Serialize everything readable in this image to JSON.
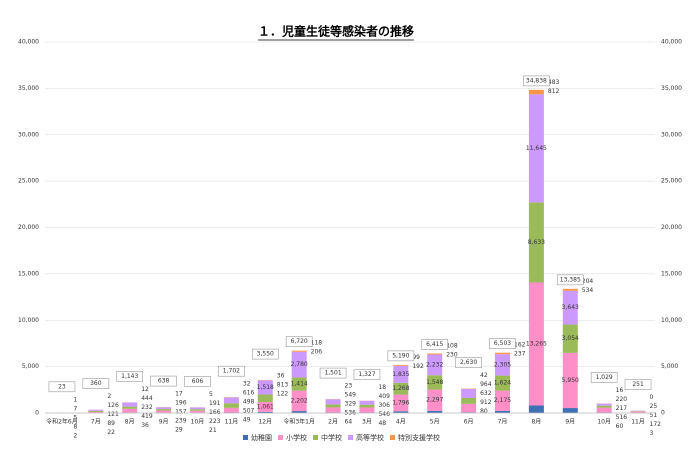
{
  "chart_data": {
    "type": "stacked-bar",
    "title": "１．児童生徒等感染者の推移",
    "categories": [
      "令和2年6月",
      "7月",
      "8月",
      "9月",
      "10月",
      "11月",
      "12月",
      "令和3年1月",
      "2月",
      "3月",
      "4月",
      "5月",
      "6月",
      "7月",
      "8月",
      "9月",
      "10月",
      "11月"
    ],
    "series": [
      {
        "name": "幼稚園",
        "color": "#3f6fb5",
        "values": [
          2,
          22,
          36,
          29,
          21,
          49,
          122,
          206,
          64,
          48,
          192,
          230,
          80,
          237,
          812,
          534,
          60,
          3
        ],
        "value_labels": [
          "2",
          "22",
          "36",
          "29",
          "21",
          "49",
          "122",
          "206",
          "64",
          "48",
          "192",
          "230",
          "80",
          "237",
          "812",
          "534",
          "60",
          "3"
        ]
      },
      {
        "name": "小学校",
        "color": "#ff8fc8",
        "values": [
          8,
          89,
          419,
          239,
          223,
          507,
          1061,
          2202,
          536,
          546,
          1796,
          2297,
          912,
          2175,
          13265,
          5950,
          516,
          172
        ],
        "value_labels": [
          "8",
          "89",
          "419",
          "239",
          "223",
          "507",
          "1,061",
          "2,202",
          "536",
          "546",
          "1,796",
          "2,297",
          "912",
          "2,175",
          "13,265",
          "5,950",
          "516",
          "172"
        ]
      },
      {
        "name": "中学校",
        "color": "#9bbb59",
        "values": [
          5,
          121,
          232,
          157,
          166,
          498,
          813,
          1414,
          329,
          306,
          1268,
          1548,
          632,
          1624,
          8633,
          3054,
          217,
          51
        ],
        "value_labels": [
          "5",
          "121",
          "232",
          "157",
          "166",
          "498",
          "813",
          "1,414",
          "329",
          "306",
          "1,268",
          "1,548",
          "632",
          "1,624",
          "8,633",
          "3,054",
          "217",
          "51"
        ]
      },
      {
        "name": "高等学校",
        "color": "#cc99ff",
        "values": [
          7,
          126,
          444,
          196,
          191,
          616,
          1518,
          2780,
          549,
          409,
          1835,
          2232,
          964,
          2305,
          11645,
          3643,
          220,
          25
        ],
        "value_labels": [
          "7",
          "126",
          "444",
          "196",
          "191",
          "616",
          "1,518",
          "2,780",
          "549",
          "409",
          "1,835",
          "2,232",
          "964",
          "2,305",
          "11,645",
          "3,643",
          "220",
          "25"
        ]
      },
      {
        "name": "特別支援学校",
        "color": "#f79646",
        "values": [
          1,
          2,
          12,
          17,
          5,
          32,
          36,
          118,
          23,
          18,
          99,
          108,
          42,
          162,
          483,
          204,
          16,
          0
        ],
        "value_labels": [
          "1",
          "2",
          "12",
          "17",
          "5",
          "32",
          "36",
          "118",
          "23",
          "18",
          "99",
          "108",
          "42",
          "162",
          "483",
          "204",
          "16",
          "0"
        ]
      }
    ],
    "totals": [
      23,
      360,
      1143,
      638,
      606,
      1702,
      3550,
      6720,
      1501,
      1327,
      5190,
      6415,
      2630,
      6503,
      34838,
      13385,
      1029,
      251
    ],
    "total_labels": [
      "23",
      "360",
      "1,143",
      "638",
      "606",
      "1,702",
      "3,550",
      "6,720",
      "1,501",
      "1,327",
      "5,190",
      "6,415",
      "2,630",
      "6,503",
      "34,838",
      "13,385",
      "1,029",
      "251"
    ],
    "ylim": [
      0,
      40000
    ],
    "yticks": [
      0,
      {
        "value": 5000,
        "label": "5,000"
      },
      {
        "value": 10000,
        "label": "10,000"
      },
      {
        "value": 15000,
        "label": "15,000"
      },
      {
        "value": 20000,
        "label": "20,000"
      },
      {
        "value": 25000,
        "label": "25,000"
      },
      {
        "value": 30000,
        "label": "30,000"
      },
      {
        "value": 35000,
        "label": "35,000"
      },
      {
        "value": 40000,
        "label": "40,000"
      }
    ],
    "grid": true,
    "legend": "bottom"
  }
}
